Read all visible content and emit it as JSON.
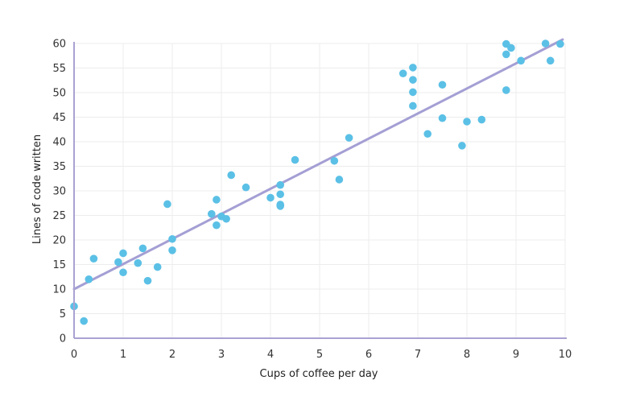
{
  "chart_data": {
    "type": "scatter",
    "xlabel": "Cups of coffee per day",
    "ylabel": "Lines of code written",
    "xlim": [
      0,
      10
    ],
    "ylim": [
      0,
      60
    ],
    "xticks": [
      0,
      1,
      2,
      3,
      4,
      5,
      6,
      7,
      8,
      9,
      10
    ],
    "yticks": [
      0,
      5,
      10,
      15,
      20,
      25,
      30,
      35,
      40,
      45,
      50,
      55,
      60
    ],
    "grid": true,
    "legend": "none",
    "colors": {
      "points": "#5bc0e6",
      "trendline": "#a49fd4",
      "axis": "#a9a2d2",
      "grid": "#ececec"
    },
    "points": [
      {
        "x": 0.0,
        "y": 6.5
      },
      {
        "x": 0.2,
        "y": 3.5
      },
      {
        "x": 0.3,
        "y": 12
      },
      {
        "x": 0.4,
        "y": 16.2
      },
      {
        "x": 0.9,
        "y": 15.5
      },
      {
        "x": 1.0,
        "y": 17.3
      },
      {
        "x": 1.0,
        "y": 13.4
      },
      {
        "x": 1.3,
        "y": 15.3
      },
      {
        "x": 1.4,
        "y": 18.3
      },
      {
        "x": 1.5,
        "y": 11.7
      },
      {
        "x": 1.7,
        "y": 14.5
      },
      {
        "x": 1.9,
        "y": 27.3
      },
      {
        "x": 2.0,
        "y": 20.2
      },
      {
        "x": 2.0,
        "y": 17.9
      },
      {
        "x": 2.8,
        "y": 25.3
      },
      {
        "x": 2.9,
        "y": 28.2
      },
      {
        "x": 2.9,
        "y": 23.0
      },
      {
        "x": 3.0,
        "y": 24.8
      },
      {
        "x": 3.1,
        "y": 24.3
      },
      {
        "x": 3.2,
        "y": 33.2
      },
      {
        "x": 3.5,
        "y": 30.7
      },
      {
        "x": 4.0,
        "y": 28.6
      },
      {
        "x": 4.2,
        "y": 31.2
      },
      {
        "x": 4.2,
        "y": 29.3
      },
      {
        "x": 4.2,
        "y": 27.2
      },
      {
        "x": 4.2,
        "y": 26.9
      },
      {
        "x": 4.5,
        "y": 36.3
      },
      {
        "x": 5.3,
        "y": 36.1
      },
      {
        "x": 5.4,
        "y": 32.3
      },
      {
        "x": 5.6,
        "y": 40.8
      },
      {
        "x": 6.7,
        "y": 53.9
      },
      {
        "x": 6.9,
        "y": 55.1
      },
      {
        "x": 6.9,
        "y": 52.6
      },
      {
        "x": 6.9,
        "y": 50.1
      },
      {
        "x": 6.9,
        "y": 47.3
      },
      {
        "x": 7.2,
        "y": 41.6
      },
      {
        "x": 7.5,
        "y": 51.6
      },
      {
        "x": 7.5,
        "y": 44.8
      },
      {
        "x": 7.9,
        "y": 39.2
      },
      {
        "x": 8.0,
        "y": 44.1
      },
      {
        "x": 8.3,
        "y": 44.5
      },
      {
        "x": 8.8,
        "y": 59.9
      },
      {
        "x": 8.8,
        "y": 57.8
      },
      {
        "x": 8.8,
        "y": 50.5
      },
      {
        "x": 8.9,
        "y": 59.1
      },
      {
        "x": 9.1,
        "y": 56.5
      },
      {
        "x": 9.6,
        "y": 60.0
      },
      {
        "x": 9.7,
        "y": 56.5
      },
      {
        "x": 9.9,
        "y": 59.9
      }
    ],
    "trendline": {
      "x": [
        0,
        9.95
      ],
      "y": [
        10,
        60.8
      ]
    }
  }
}
